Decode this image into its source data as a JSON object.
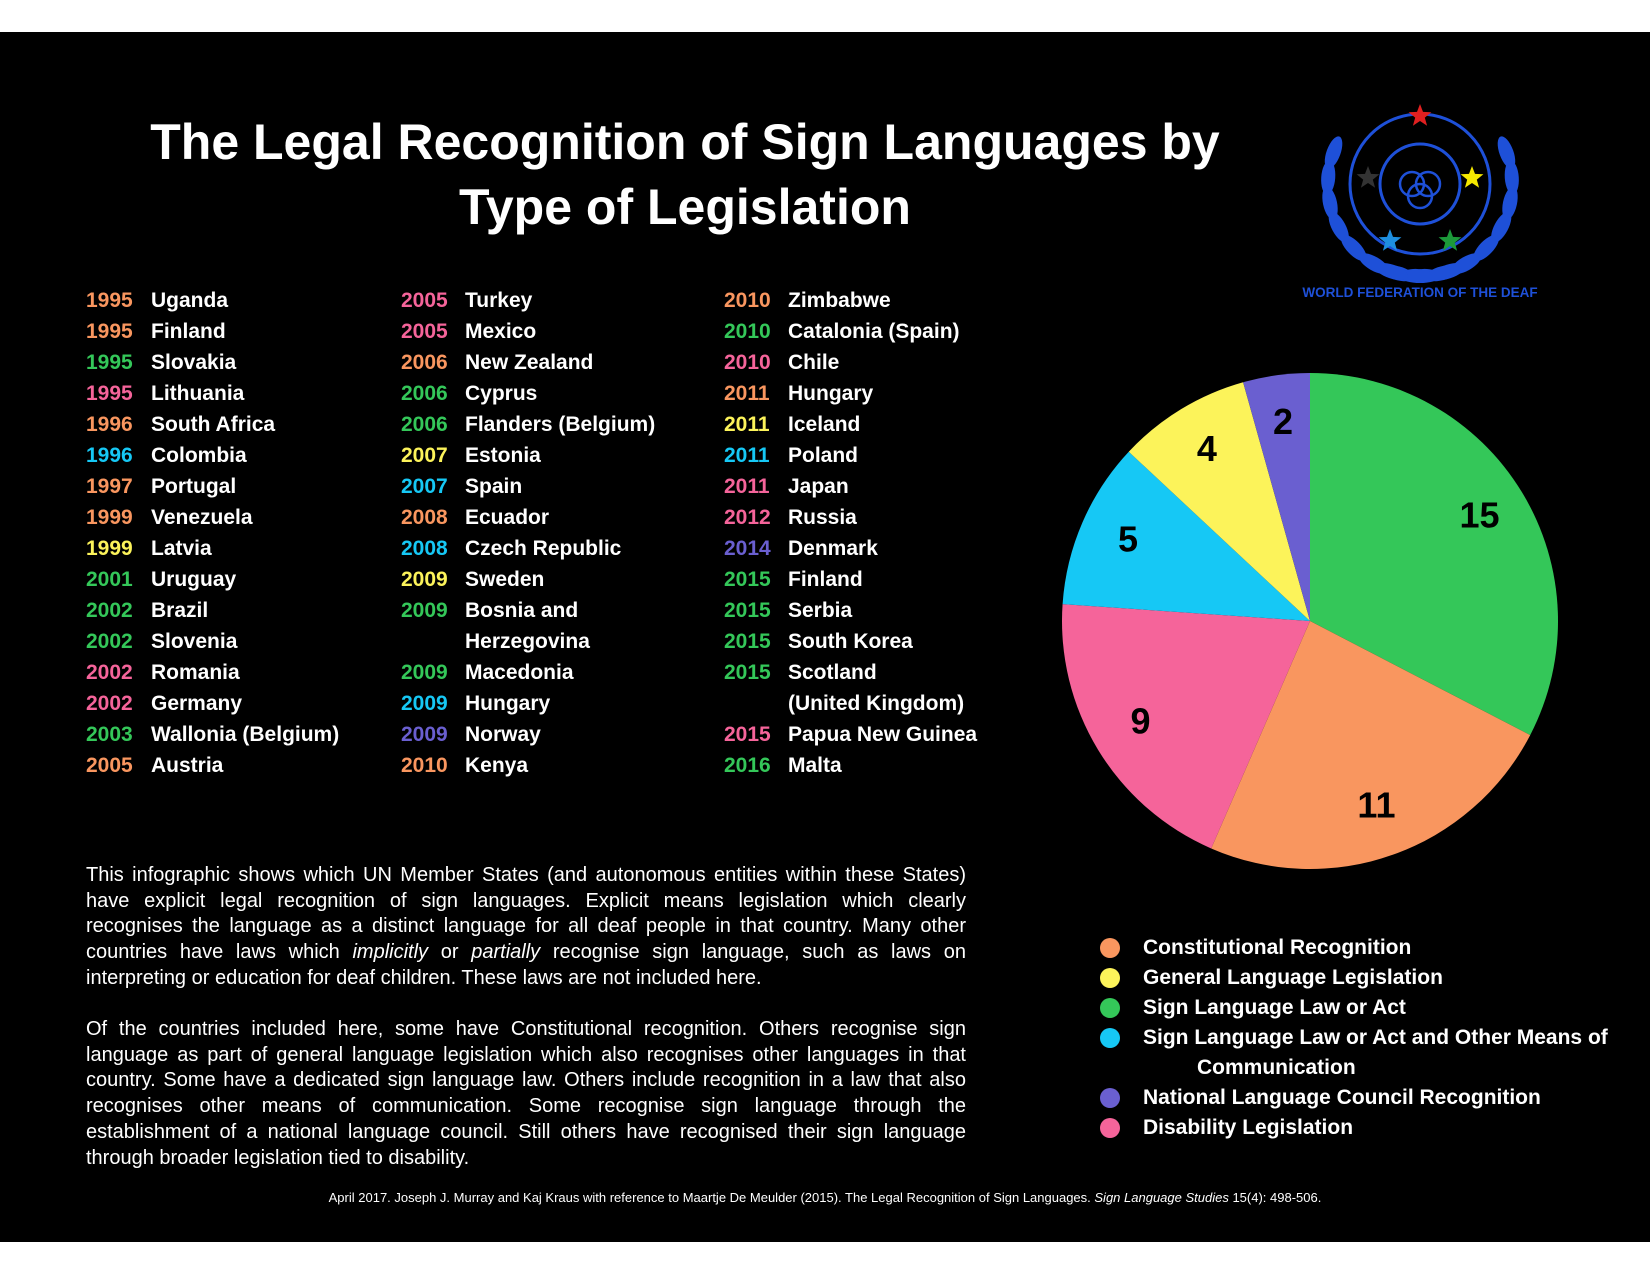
{
  "title": "The Legal Recognition of Sign Languages by Type of Legislation",
  "logo_text": "WORLD FEDERATION OF THE DEAF",
  "columns": [
    [
      {
        "year": "1995",
        "country": [
          "Uganda"
        ],
        "color": "#f9965f"
      },
      {
        "year": "1995",
        "country": [
          "Finland"
        ],
        "color": "#f9965f"
      },
      {
        "year": "1995",
        "country": [
          "Slovakia"
        ],
        "color": "#34c759"
      },
      {
        "year": "1995",
        "country": [
          "Lithuania"
        ],
        "color": "#f5649a"
      },
      {
        "year": "1996",
        "country": [
          "South Africa"
        ],
        "color": "#f9965f"
      },
      {
        "year": "1996",
        "country": [
          "Colombia"
        ],
        "color": "#16c8f5"
      },
      {
        "year": "1997",
        "country": [
          "Portugal"
        ],
        "color": "#f9965f"
      },
      {
        "year": "1999",
        "country": [
          "Venezuela"
        ],
        "color": "#f9965f"
      },
      {
        "year": "1999",
        "country": [
          "Latvia"
        ],
        "color": "#fcf35a"
      },
      {
        "year": "2001",
        "country": [
          "Uruguay"
        ],
        "color": "#34c759"
      },
      {
        "year": "2002",
        "country": [
          "Brazil"
        ],
        "color": "#34c759"
      },
      {
        "year": "2002",
        "country": [
          "Slovenia"
        ],
        "color": "#34c759"
      },
      {
        "year": "2002",
        "country": [
          "Romania"
        ],
        "color": "#f5649a"
      },
      {
        "year": "2002",
        "country": [
          "Germany"
        ],
        "color": "#f5649a"
      },
      {
        "year": "2003",
        "country": [
          "Wallonia (Belgium)"
        ],
        "color": "#34c759"
      },
      {
        "year": "2005",
        "country": [
          "Austria"
        ],
        "color": "#f9965f"
      }
    ],
    [
      {
        "year": "2005",
        "country": [
          "Turkey"
        ],
        "color": "#f5649a"
      },
      {
        "year": "2005",
        "country": [
          "Mexico"
        ],
        "color": "#f5649a"
      },
      {
        "year": "2006",
        "country": [
          "New Zealand"
        ],
        "color": "#f9965f"
      },
      {
        "year": "2006",
        "country": [
          "Cyprus"
        ],
        "color": "#34c759"
      },
      {
        "year": "2006",
        "country": [
          "Flanders (Belgium)"
        ],
        "color": "#34c759"
      },
      {
        "year": "2007",
        "country": [
          "Estonia"
        ],
        "color": "#fcf35a"
      },
      {
        "year": "2007",
        "country": [
          "Spain"
        ],
        "color": "#16c8f5"
      },
      {
        "year": "2008",
        "country": [
          "Ecuador"
        ],
        "color": "#f9965f"
      },
      {
        "year": "2008",
        "country": [
          "Czech Republic"
        ],
        "color": "#16c8f5"
      },
      {
        "year": "2009",
        "country": [
          "Sweden"
        ],
        "color": "#fcf35a"
      },
      {
        "year": "2009",
        "country": [
          "Bosnia and",
          "Herzegovina"
        ],
        "color": "#34c759"
      },
      {
        "year": "2009",
        "country": [
          "Macedonia"
        ],
        "color": "#34c759"
      },
      {
        "year": "2009",
        "country": [
          "Hungary"
        ],
        "color": "#16c8f5"
      },
      {
        "year": "2009",
        "country": [
          "Norway"
        ],
        "color": "#6a5fd0"
      },
      {
        "year": "2010",
        "country": [
          "Kenya"
        ],
        "color": "#f9965f"
      }
    ],
    [
      {
        "year": "2010",
        "country": [
          "Zimbabwe"
        ],
        "color": "#f9965f"
      },
      {
        "year": "2010",
        "country": [
          "Catalonia (Spain)"
        ],
        "color": "#34c759"
      },
      {
        "year": "2010",
        "country": [
          "Chile"
        ],
        "color": "#f5649a"
      },
      {
        "year": "2011",
        "country": [
          "Hungary"
        ],
        "color": "#f9965f"
      },
      {
        "year": "2011",
        "country": [
          "Iceland"
        ],
        "color": "#fcf35a"
      },
      {
        "year": "2011",
        "country": [
          "Poland"
        ],
        "color": "#16c8f5"
      },
      {
        "year": "2011",
        "country": [
          "Japan"
        ],
        "color": "#f5649a"
      },
      {
        "year": "2012",
        "country": [
          "Russia"
        ],
        "color": "#f5649a"
      },
      {
        "year": "2014",
        "country": [
          "Denmark"
        ],
        "color": "#6a5fd0"
      },
      {
        "year": "2015",
        "country": [
          "Finland"
        ],
        "color": "#34c759"
      },
      {
        "year": "2015",
        "country": [
          "Serbia"
        ],
        "color": "#34c759"
      },
      {
        "year": "2015",
        "country": [
          "South Korea"
        ],
        "color": "#34c759"
      },
      {
        "year": "2015",
        "country": [
          "Scotland",
          "(United Kingdom)"
        ],
        "color": "#34c759"
      },
      {
        "year": "2015",
        "country": [
          "Papua New Guinea"
        ],
        "color": "#f5649a"
      },
      {
        "year": "2016",
        "country": [
          "Malta"
        ],
        "color": "#34c759"
      }
    ]
  ],
  "paragraphs": [
    [
      {
        "text": "This infographic shows which UN Member States (and autonomous entities within these States) have explicit legal recognition of sign languages.  Explicit means legislation which clearly recognises the language as a distinct language for all deaf people in that country.  Many other countries have laws which "
      },
      {
        "text": "implicitly",
        "italic": true
      },
      {
        "text": " or "
      },
      {
        "text": "partially",
        "italic": true
      },
      {
        "text": " recognise sign language, such as laws on interpreting or education for deaf children.  These laws are not included here."
      }
    ],
    [
      {
        "text": "Of the countries included here, some have Constitutional recognition.  Others recognise sign language as part of general language legislation which also recognises other languages in that country.  Some have a dedicated sign language law. Others include recognition in a law that also recognises other means of communication.  Some recognise sign language through the establishment of a national language council.  Still others have recognised their sign language through broader legislation tied to disability."
      }
    ]
  ],
  "citation": [
    {
      "text": "April 2017. Joseph J. Murray and Kaj Kraus with reference to Maartje De Meulder (2015). The Legal Recognition of Sign Languages. "
    },
    {
      "text": "Sign Language Studies",
      "italic": true
    },
    {
      "text": " 15(4): 498-506."
    }
  ],
  "chart_data": {
    "type": "pie",
    "categories": [
      "Sign Language Law or Act",
      "Constitutional Recognition",
      "Disability Legislation",
      "Sign Language Law or Act and Other Means of Communication",
      "General Language Legislation",
      "National Language Council Recognition"
    ],
    "values": [
      15,
      11,
      9,
      5,
      4,
      2
    ],
    "colors": [
      "#34c759",
      "#f9965f",
      "#f5649a",
      "#16c8f5",
      "#fcf35a",
      "#6a5fd0"
    ]
  }
}
